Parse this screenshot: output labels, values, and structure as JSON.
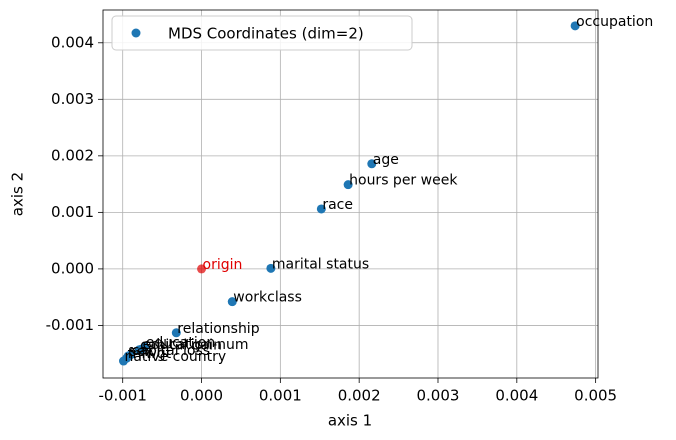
{
  "chart_data": {
    "type": "scatter",
    "xlabel": "axis 1",
    "ylabel": "axis 2",
    "xlim": [
      -0.00125,
      0.00503
    ],
    "ylim": [
      -0.00193,
      0.00458
    ],
    "xticks": [
      -0.001,
      {
        "value": 0,
        "label": "0.000"
      },
      0.001,
      0.002,
      0.003,
      0.004,
      0.005
    ],
    "yticks": [
      -0.001,
      {
        "value": 0,
        "label": "0.000"
      },
      0.001,
      0.002,
      0.003,
      0.004
    ],
    "grid": true,
    "legend": "upper left",
    "series": [
      {
        "name": "MDS Coordinates (dim=2)",
        "color": "#1f77b4",
        "labels": [
          "occupation",
          "age",
          "hours per week",
          "race",
          "marital status",
          "workclass",
          "relationship",
          "education",
          "education-num",
          "capital gain",
          "capital loss",
          "sex",
          "fnlwgt",
          "native country"
        ],
        "x": [
          0.00474,
          0.00216,
          0.00186,
          0.00152,
          0.00088,
          0.00039,
          -0.00032,
          -0.00072,
          -0.00076,
          -0.00079,
          -0.0009,
          -0.00093,
          -0.00095,
          -0.00099
        ],
        "y": [
          0.0043,
          0.00186,
          0.00149,
          0.00106,
          1e-05,
          -0.00058,
          -0.00113,
          -0.00138,
          -0.00142,
          -0.00143,
          -0.00152,
          -0.00154,
          -0.00158,
          -0.00163
        ]
      }
    ],
    "annotations": [
      {
        "text": "origin",
        "x": 0,
        "y": 0,
        "color": "#e00000"
      }
    ]
  }
}
